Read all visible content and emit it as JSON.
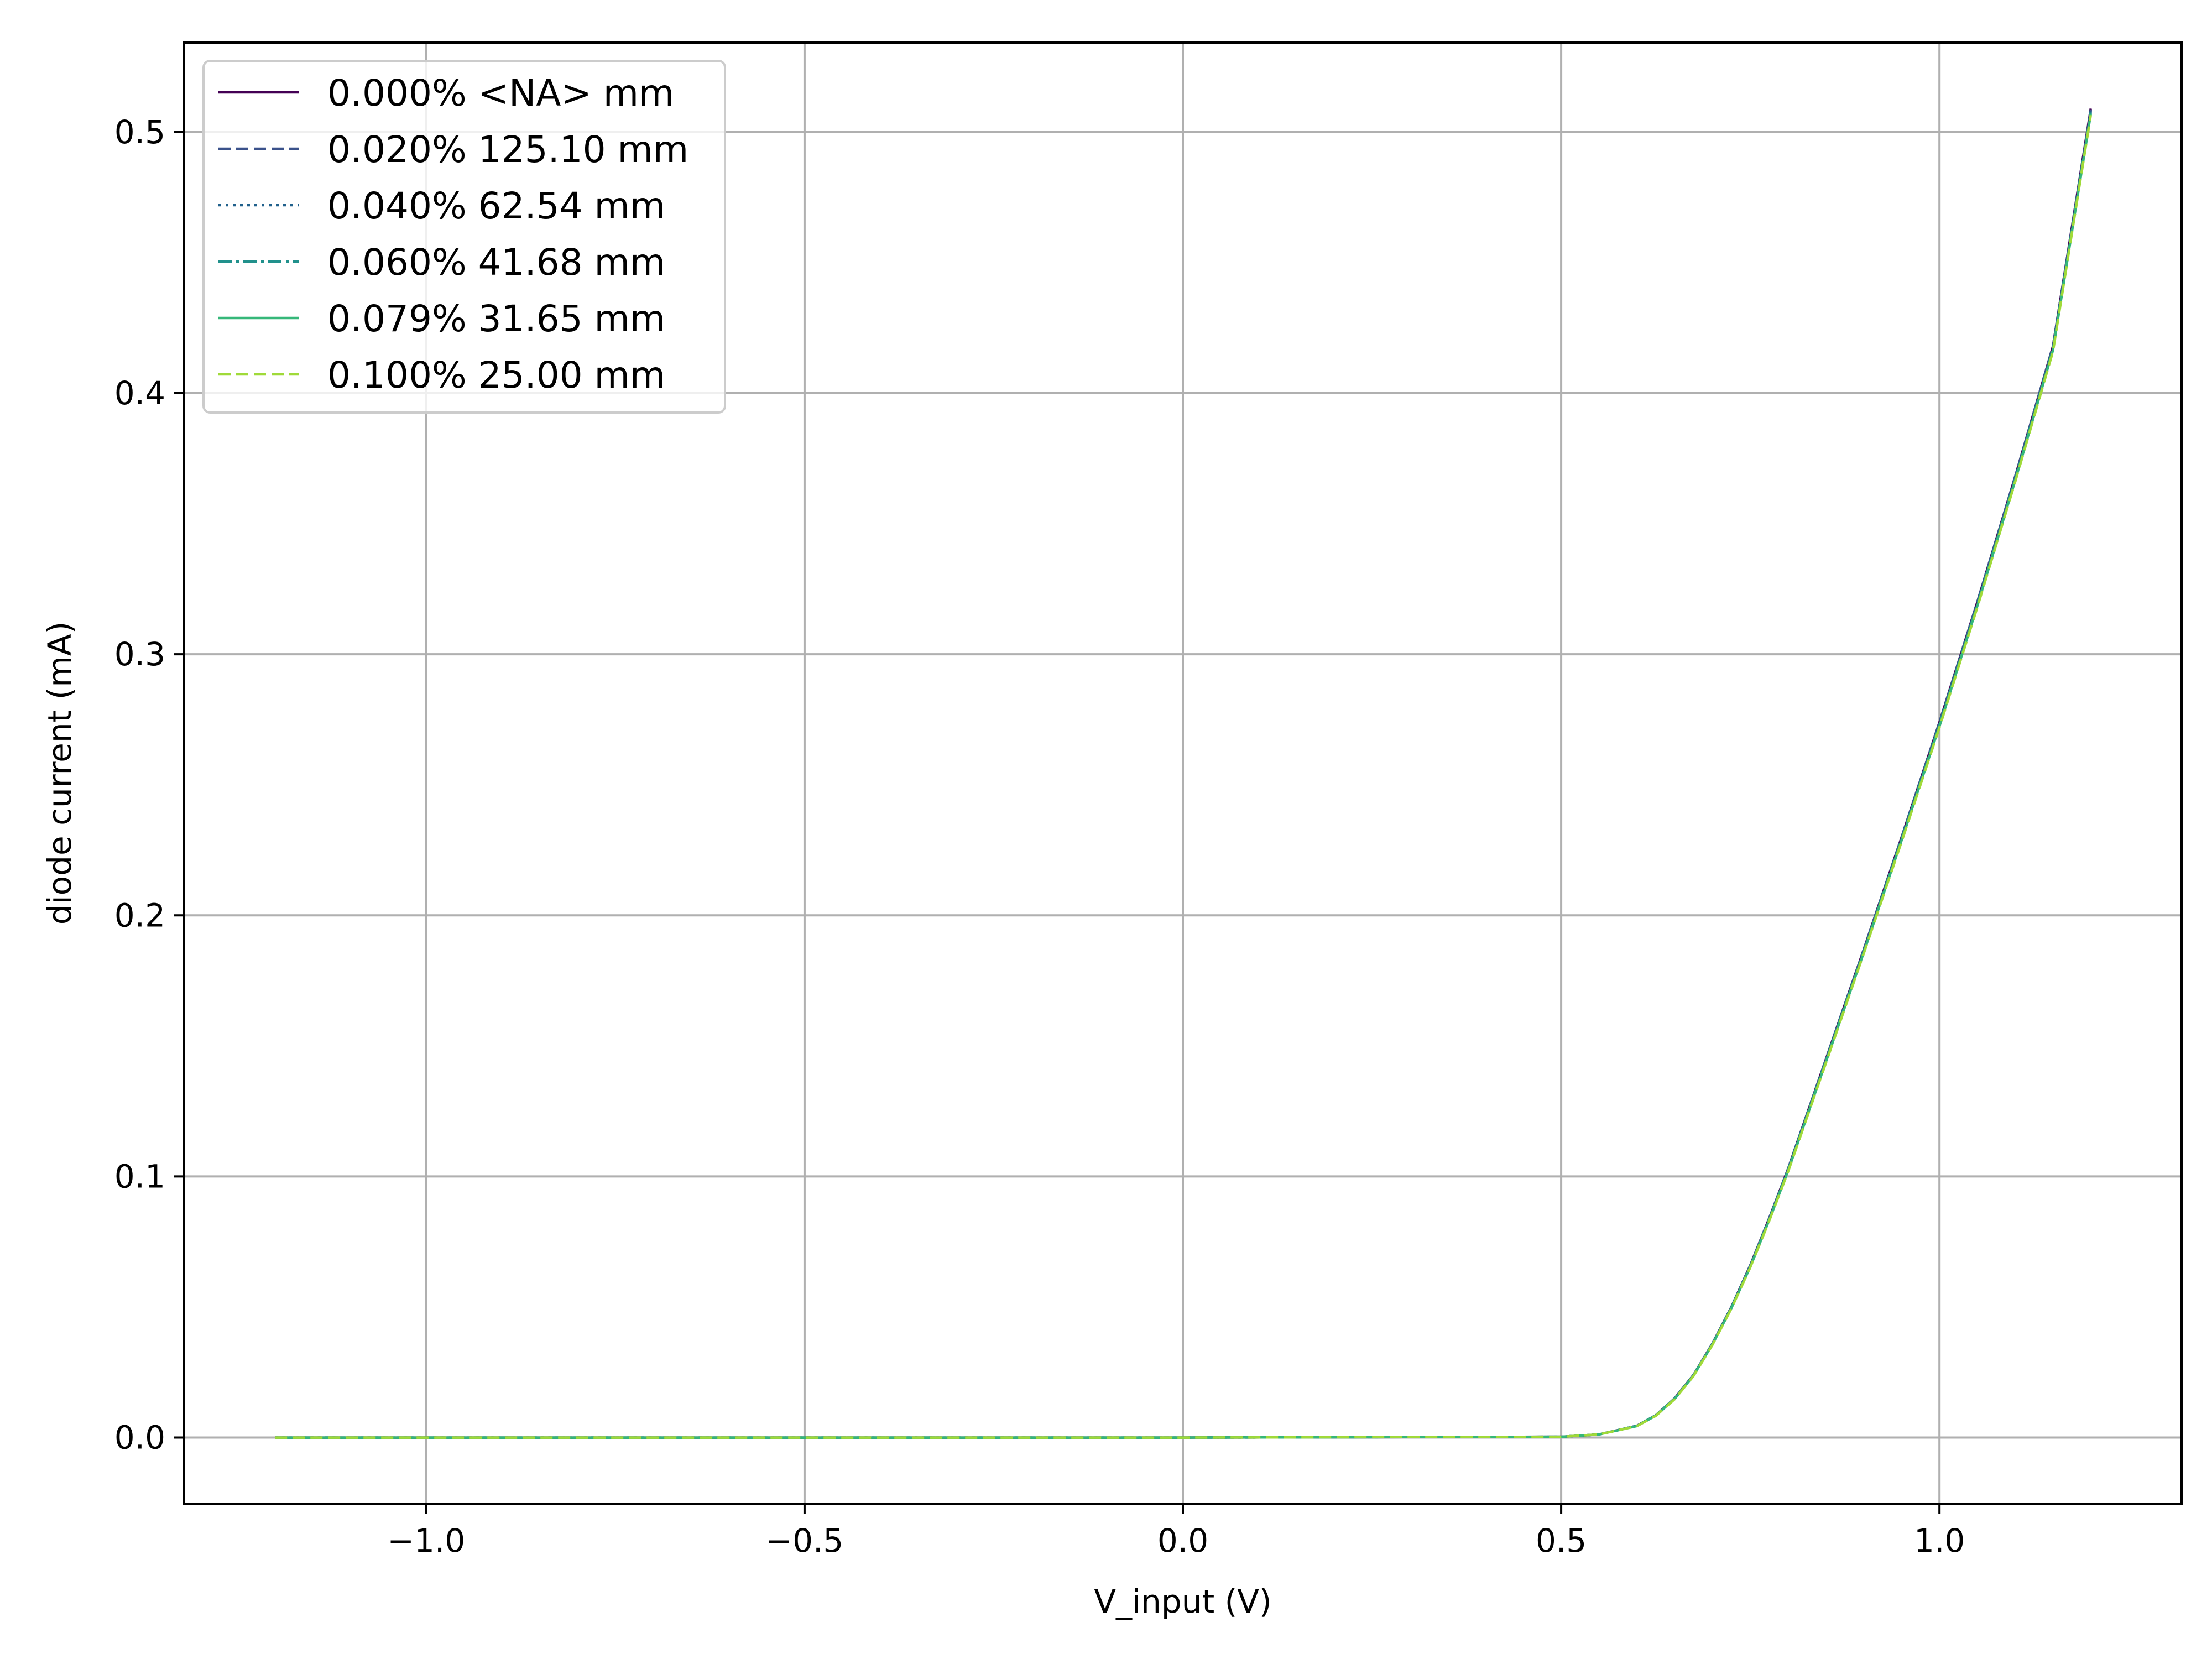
{
  "chart_data": {
    "type": "line",
    "title": "",
    "xlabel": "V_input (V)",
    "ylabel": "diode current (mA)",
    "xlim": [
      -1.32,
      1.32
    ],
    "ylim": [
      -0.0253,
      0.5343
    ],
    "xticks": [
      -1.0,
      -0.5,
      0.0,
      0.5,
      1.0
    ],
    "xtick_labels": [
      "−1.0",
      "−0.5",
      "0.0",
      "0.5",
      "1.0"
    ],
    "yticks": [
      0.0,
      0.1,
      0.2,
      0.3,
      0.4,
      0.5
    ],
    "ytick_labels": [
      "0.0",
      "0.1",
      "0.2",
      "0.3",
      "0.4",
      "0.5"
    ],
    "grid": true,
    "legend_position": "top-left",
    "x": [
      -1.2,
      -1.0,
      -0.5,
      0.0,
      0.5,
      0.55,
      0.6,
      0.625,
      0.65,
      0.675,
      0.7,
      0.725,
      0.75,
      0.775,
      0.8,
      0.85,
      0.9,
      0.95,
      1.0,
      1.05,
      1.1,
      1.15,
      1.2
    ],
    "series": [
      {
        "name": "0.000% <NA> mm",
        "color": "#440154",
        "dash": "solid",
        "values": [
          0,
          0,
          0,
          0,
          0.0003,
          0.0012,
          0.0045,
          0.0085,
          0.015,
          0.024,
          0.036,
          0.05,
          0.066,
          0.084,
          0.103,
          0.145,
          0.187,
          0.23,
          0.274,
          0.32,
          0.368,
          0.418,
          0.509
        ]
      },
      {
        "name": "0.020% 125.10 mm",
        "color": "#3b528b",
        "dash": "dashed",
        "values": [
          0,
          0,
          0,
          0,
          0.0003,
          0.0012,
          0.0045,
          0.0085,
          0.015,
          0.024,
          0.036,
          0.05,
          0.066,
          0.084,
          0.103,
          0.145,
          0.187,
          0.23,
          0.274,
          0.32,
          0.368,
          0.418,
          0.5085
        ]
      },
      {
        "name": "0.040% 62.54 mm",
        "color": "#21618c",
        "dash": "dotted",
        "values": [
          0,
          0,
          0,
          0,
          0.0003,
          0.0012,
          0.0045,
          0.0085,
          0.015,
          0.024,
          0.036,
          0.05,
          0.0658,
          0.0838,
          0.1028,
          0.1447,
          0.1866,
          0.2296,
          0.2735,
          0.3195,
          0.3675,
          0.4175,
          0.508
        ]
      },
      {
        "name": "0.060% 41.68 mm",
        "color": "#21918c",
        "dash": "dashdot",
        "values": [
          0,
          0,
          0,
          0,
          0.0003,
          0.0012,
          0.0045,
          0.0085,
          0.0149,
          0.0239,
          0.0358,
          0.0498,
          0.0656,
          0.0836,
          0.1025,
          0.1444,
          0.1863,
          0.2292,
          0.273,
          0.319,
          0.367,
          0.417,
          0.5075
        ]
      },
      {
        "name": "0.079% 31.65 mm",
        "color": "#35b779",
        "dash": "solid",
        "values": [
          0,
          0,
          0,
          0,
          0.0003,
          0.0012,
          0.0044,
          0.0084,
          0.0148,
          0.0238,
          0.0357,
          0.0496,
          0.0654,
          0.0833,
          0.1022,
          0.144,
          0.1859,
          0.2288,
          0.2725,
          0.3185,
          0.3665,
          0.4165,
          0.507
        ]
      },
      {
        "name": "0.100% 25.00 mm",
        "color": "#a0da39",
        "dash": "dashed",
        "values": [
          0,
          0,
          0,
          0,
          0.0003,
          0.0012,
          0.0044,
          0.0083,
          0.0147,
          0.0236,
          0.0355,
          0.0494,
          0.0652,
          0.083,
          0.1019,
          0.1436,
          0.1855,
          0.2283,
          0.272,
          0.318,
          0.366,
          0.416,
          0.5065
        ]
      }
    ]
  }
}
